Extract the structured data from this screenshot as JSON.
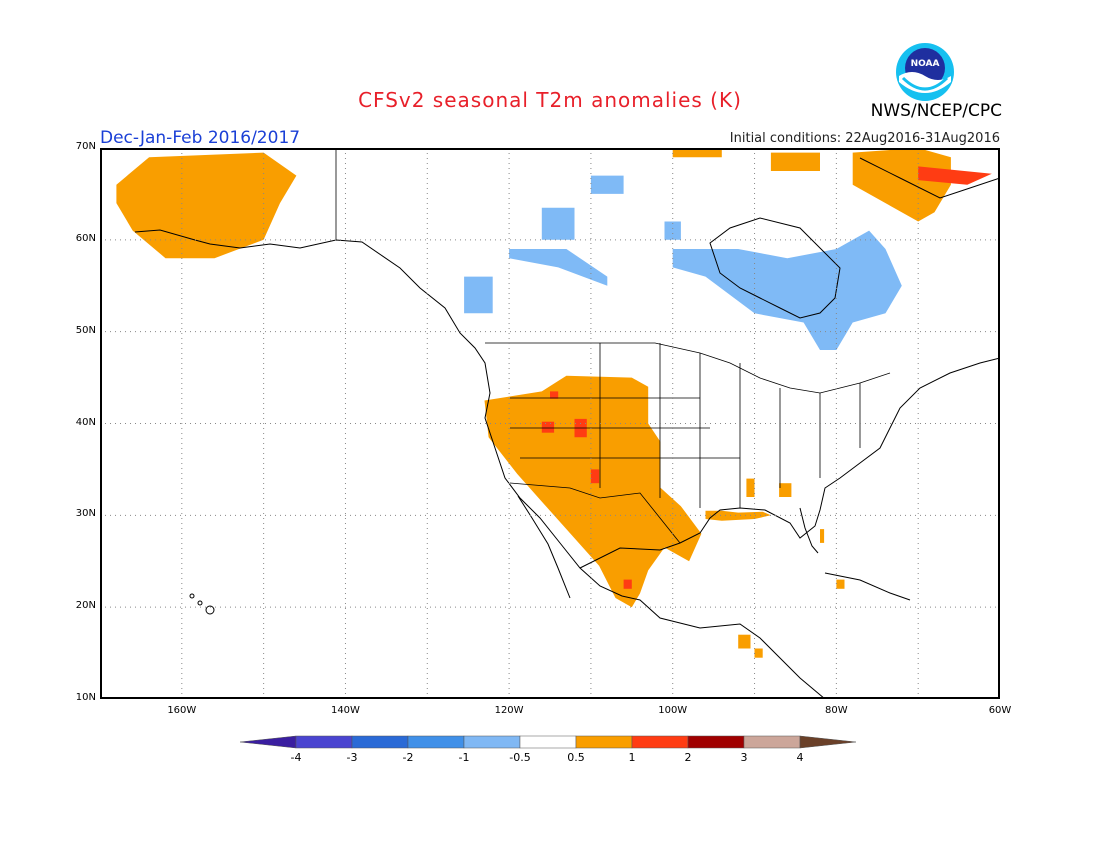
{
  "header": {
    "title": "CFSv2 seasonal T2m anomalies (K)",
    "agency": "NWS/NCEP/CPC",
    "period": "Dec-Jan-Feb 2016/2017",
    "initial_conditions": "Initial conditions: 22Aug2016-31Aug2016",
    "logo_text": "NOAA"
  },
  "map": {
    "lon_range": [
      -170,
      -60
    ],
    "lat_range": [
      10,
      70
    ],
    "lat_labels": [
      "70N",
      "60N",
      "50N",
      "40N",
      "30N",
      "20N",
      "10N"
    ],
    "lon_labels": [
      "160W",
      "140W",
      "120W",
      "100W",
      "80W",
      "60W"
    ],
    "anomaly_regions": [
      {
        "name": "alaska-warm",
        "category": "0.5-1",
        "lonlat": [
          [
            -168,
            66
          ],
          [
            -164,
            69
          ],
          [
            -150,
            69.5
          ],
          [
            -146,
            67
          ],
          [
            -148,
            64
          ],
          [
            -150,
            60
          ],
          [
            -156,
            58
          ],
          [
            -162,
            58
          ],
          [
            -166,
            61
          ],
          [
            -168,
            64
          ]
        ]
      },
      {
        "name": "us-southwest-warm",
        "category": "0.5-1",
        "lonlat": [
          [
            -123,
            42.5
          ],
          [
            -116,
            43.5
          ],
          [
            -113,
            45.2
          ],
          [
            -105,
            45
          ],
          [
            -103,
            44
          ],
          [
            -103,
            40
          ],
          [
            -101.5,
            38
          ],
          [
            -101.5,
            33
          ],
          [
            -99,
            31
          ],
          [
            -96.5,
            28
          ],
          [
            -98,
            25
          ],
          [
            -101,
            26.5
          ],
          [
            -103,
            24
          ],
          [
            -104,
            21.5
          ],
          [
            -105,
            20
          ],
          [
            -107,
            21
          ],
          [
            -109,
            24.5
          ],
          [
            -113,
            28.5
          ],
          [
            -116,
            31.5
          ],
          [
            -119,
            34.5
          ],
          [
            -122.5,
            38.5
          ]
        ]
      },
      {
        "name": "gulf-coast-warm",
        "category": "0.5-1",
        "lonlat": [
          [
            -96,
            30.5
          ],
          [
            -94,
            30.5
          ],
          [
            -92,
            30.3
          ],
          [
            -89,
            30.4
          ],
          [
            -88,
            30
          ],
          [
            -90,
            29.6
          ],
          [
            -94,
            29.4
          ],
          [
            -96,
            29.6
          ]
        ]
      },
      {
        "name": "alabama-warm",
        "category": "0.5-1",
        "lonlat": [
          [
            -87,
            33.5
          ],
          [
            -85.5,
            33.5
          ],
          [
            -85.5,
            32
          ],
          [
            -87,
            32
          ]
        ]
      },
      {
        "name": "mississippi-warm",
        "category": "0.5-1",
        "lonlat": [
          [
            -91,
            34
          ],
          [
            -90,
            34
          ],
          [
            -90,
            32
          ],
          [
            -91,
            32
          ]
        ]
      },
      {
        "name": "florida-warm",
        "category": "0.5-1",
        "lonlat": [
          [
            -82,
            28.5
          ],
          [
            -81.5,
            28.5
          ],
          [
            -81.5,
            27
          ],
          [
            -82,
            27
          ]
        ]
      },
      {
        "name": "cuba-warm",
        "category": "0.5-1",
        "lonlat": [
          [
            -80,
            23
          ],
          [
            -79,
            23
          ],
          [
            -79,
            22
          ],
          [
            -80,
            22
          ]
        ]
      },
      {
        "name": "central-america-warm",
        "category": "0.5-1",
        "lonlat": [
          [
            -92,
            17
          ],
          [
            -90.5,
            17
          ],
          [
            -90.5,
            15.5
          ],
          [
            -92,
            15.5
          ]
        ]
      },
      {
        "name": "central-america-warm-2",
        "category": "0.5-1",
        "lonlat": [
          [
            -90,
            15.5
          ],
          [
            -89,
            15.5
          ],
          [
            -89,
            14.5
          ],
          [
            -90,
            14.5
          ]
        ]
      },
      {
        "name": "arctic-canada-warm",
        "category": "0.5-1",
        "lonlat": [
          [
            -88,
            69.5
          ],
          [
            -82,
            69.5
          ],
          [
            -82,
            67.5
          ],
          [
            -88,
            67.5
          ]
        ]
      },
      {
        "name": "arctic-islands-warm",
        "category": "0.5-1",
        "lonlat": [
          [
            -100,
            69.8
          ],
          [
            -94,
            69.8
          ],
          [
            -94,
            69
          ],
          [
            -100,
            69
          ]
        ]
      },
      {
        "name": "labrador-warm",
        "category": "0.5-1",
        "lonlat": [
          [
            -78,
            69.5
          ],
          [
            -70,
            70
          ],
          [
            -66,
            69
          ],
          [
            -66,
            66
          ],
          [
            -68,
            63
          ],
          [
            -70,
            62
          ],
          [
            -74,
            64
          ],
          [
            -78,
            66
          ]
        ]
      },
      {
        "name": "utah-hot",
        "category": "1-2",
        "lonlat": [
          [
            -116,
            40.2
          ],
          [
            -114.5,
            40.2
          ],
          [
            -114.5,
            39
          ],
          [
            -116,
            39
          ]
        ]
      },
      {
        "name": "colorado-hot",
        "category": "1-2",
        "lonlat": [
          [
            -112,
            40.5
          ],
          [
            -110.5,
            40.5
          ],
          [
            -110.5,
            38.5
          ],
          [
            -112,
            38.5
          ]
        ]
      },
      {
        "name": "new-mexico-hot",
        "category": "1-2",
        "lonlat": [
          [
            -110,
            35
          ],
          [
            -109,
            35
          ],
          [
            -109,
            33.5
          ],
          [
            -110,
            33.5
          ]
        ]
      },
      {
        "name": "idaho-hot",
        "category": "1-2",
        "lonlat": [
          [
            -115,
            43.5
          ],
          [
            -114,
            43.5
          ],
          [
            -114,
            42.7
          ],
          [
            -115,
            42.7
          ]
        ]
      },
      {
        "name": "mexico-hot",
        "category": "1-2",
        "lonlat": [
          [
            -106,
            23
          ],
          [
            -105,
            23
          ],
          [
            -105,
            22
          ],
          [
            -106,
            22
          ]
        ]
      },
      {
        "name": "labrador-hot",
        "category": "1-2",
        "lonlat": [
          [
            -70,
            68
          ],
          [
            -61,
            67.2
          ],
          [
            -64,
            66
          ],
          [
            -70,
            66.5
          ]
        ]
      },
      {
        "name": "bc-cool",
        "category": "-1--0.5",
        "lonlat": [
          [
            -125.5,
            56
          ],
          [
            -122,
            56
          ],
          [
            -122,
            52
          ],
          [
            -125.5,
            52
          ]
        ]
      },
      {
        "name": "nwt-cool",
        "category": "-1--0.5",
        "lonlat": [
          [
            -116,
            63.5
          ],
          [
            -112,
            63.5
          ],
          [
            -112,
            60
          ],
          [
            -116,
            60
          ]
        ]
      },
      {
        "name": "alberta-cool",
        "category": "-1--0.5",
        "lonlat": [
          [
            -120,
            59
          ],
          [
            -113,
            59
          ],
          [
            -108,
            56
          ],
          [
            -108,
            55
          ],
          [
            -114,
            57
          ],
          [
            -120,
            58
          ]
        ]
      },
      {
        "name": "nunavut-cool",
        "category": "-1--0.5",
        "lonlat": [
          [
            -110,
            67
          ],
          [
            -106,
            67
          ],
          [
            -106,
            65
          ],
          [
            -110,
            65
          ]
        ]
      },
      {
        "name": "hudson-cool",
        "category": "-1--0.5",
        "lonlat": [
          [
            -101,
            62
          ],
          [
            -99,
            62
          ],
          [
            -99,
            60
          ],
          [
            -101,
            60
          ]
        ]
      },
      {
        "name": "quebec-cool",
        "category": "-1--0.5",
        "lonlat": [
          [
            -100,
            59
          ],
          [
            -92,
            59
          ],
          [
            -86,
            58
          ],
          [
            -80,
            59
          ],
          [
            -76,
            61
          ],
          [
            -74,
            59
          ],
          [
            -72,
            55
          ],
          [
            -74,
            52
          ],
          [
            -78,
            51
          ],
          [
            -80,
            48
          ],
          [
            -82,
            48
          ],
          [
            -84,
            51
          ],
          [
            -90,
            52
          ],
          [
            -96,
            56
          ],
          [
            -100,
            57
          ]
        ]
      }
    ]
  },
  "colorbar": {
    "labels": [
      "-4",
      "-3",
      "-2",
      "-1",
      "-0.5",
      "0.5",
      "1",
      "2",
      "3",
      "4"
    ],
    "colors": [
      "#3a1ea0",
      "#4a44d0",
      "#2a6ad6",
      "#4090e8",
      "#80b8f4",
      "#ffffff",
      "#f99e00",
      "#ff3c13",
      "#a00000",
      "#cca69a",
      "#6a4028"
    ]
  },
  "colors": {
    "title": "#e8202a",
    "period": "#1a3fd6",
    "warm_0_5_1": "#f99e00",
    "warm_1_2": "#ff3c13",
    "cool_0_5_1": "#7fbaf6"
  }
}
